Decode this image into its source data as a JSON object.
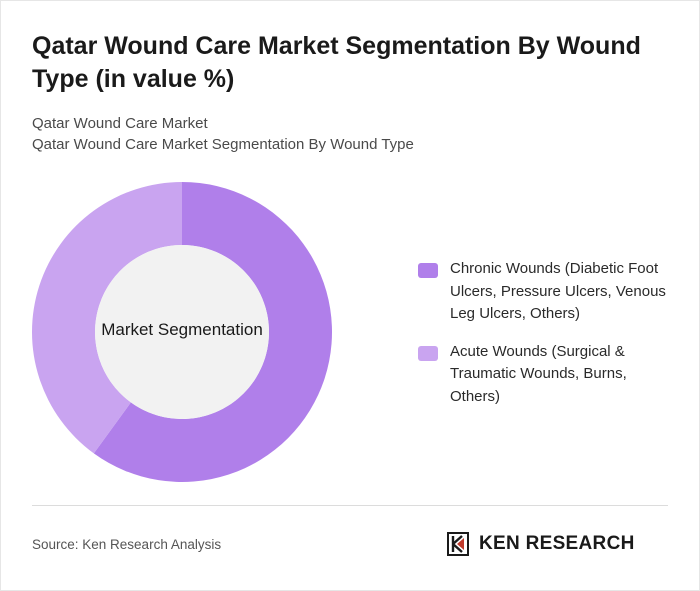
{
  "header": {
    "title": "Qatar Wound Care Market Segmentation By Wound Type (in value %)",
    "subtitle_line1": "Qatar Wound Care Market",
    "subtitle_line2": "Qatar Wound Care Market Segmentation By Wound Type"
  },
  "chart_data": {
    "type": "pie",
    "donut": true,
    "center_label": "Market Segmentation",
    "legend_position": "right",
    "series": [
      {
        "name": "Chronic Wounds (Diabetic Foot Ulcers, Pressure Ulcers, Venous Leg Ulcers, Others)",
        "value": 60,
        "color": "#b07fea"
      },
      {
        "name": "Acute Wounds (Surgical & Traumatic Wounds, Burns, Others)",
        "value": 40,
        "color": "#c9a4f0"
      }
    ],
    "hole_color": "#f2f2f2"
  },
  "footer": {
    "source": "Source: Ken Research Analysis",
    "brand": "KEN RESEARCH"
  }
}
